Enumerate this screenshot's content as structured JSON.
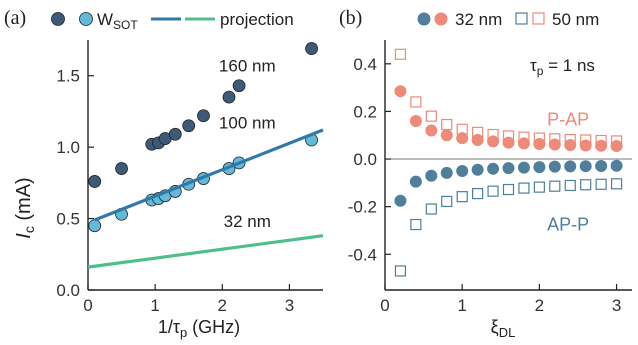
{
  "colors": {
    "dark_navy": "#3f5a78",
    "light_blue": "#62b9d8",
    "projection_teal": "#2f7aa8",
    "projection_green": "#4dbf8c",
    "salmon": "#ef8a78",
    "steel_blue": "#4f7f9b",
    "zero_line": "#777777"
  },
  "chart_data": [
    {
      "panel_label": "(a)",
      "type": "scatter",
      "xlabel_main": "1/τ",
      "xlabel_sub": "p",
      "xlabel_unit": " (GHz)",
      "ylabel_main": "I",
      "ylabel_sub": "c",
      "ylabel_unit": " (mA)",
      "xlim": [
        0,
        3.5
      ],
      "ylim": [
        0,
        1.75
      ],
      "xticks": [
        "0",
        "1",
        "2",
        "3"
      ],
      "xtick_values": [
        0,
        1,
        2,
        3
      ],
      "yticks": [
        "0.0",
        "0.5",
        "1.0",
        "1.5"
      ],
      "ytick_values": [
        0,
        0.5,
        1.0,
        1.5
      ],
      "legend": {
        "placement": "top",
        "entry_dots": "",
        "entry_wsot_main": "W",
        "entry_wsot_sub": "SOT",
        "entry_projection": "projection"
      },
      "annotations": [
        {
          "text": "160 nm",
          "x": 1.95,
          "y": 1.53
        },
        {
          "text": "100 nm",
          "x": 1.95,
          "y": 1.13
        },
        {
          "text": "32 nm",
          "x": 2.02,
          "y": 0.44
        }
      ],
      "series": [
        {
          "kind": "dots_160nm",
          "points": [
            [
              0.1,
              0.76
            ],
            [
              0.5,
              0.85
            ],
            [
              0.95,
              1.02
            ],
            [
              1.05,
              1.03
            ],
            [
              1.15,
              1.06
            ],
            [
              1.3,
              1.09
            ],
            [
              1.5,
              1.15
            ],
            [
              1.72,
              1.22
            ],
            [
              2.1,
              1.35
            ],
            [
              2.25,
              1.43
            ],
            [
              3.33,
              1.69
            ]
          ]
        },
        {
          "kind": "dots_100nm",
          "points": [
            [
              0.1,
              0.45
            ],
            [
              0.5,
              0.53
            ],
            [
              0.95,
              0.63
            ],
            [
              1.05,
              0.64
            ],
            [
              1.15,
              0.66
            ],
            [
              1.3,
              0.69
            ],
            [
              1.5,
              0.74
            ],
            [
              1.72,
              0.78
            ],
            [
              2.1,
              0.85
            ],
            [
              2.25,
              0.89
            ],
            [
              3.33,
              1.05
            ]
          ]
        },
        {
          "kind": "projection_100nm",
          "line": [
            [
              0.1,
              0.49
            ],
            [
              3.5,
              1.12
            ]
          ]
        },
        {
          "kind": "projection_32nm",
          "line": [
            [
              0,
              0.16
            ],
            [
              3.5,
              0.38
            ]
          ]
        }
      ]
    },
    {
      "panel_label": "(b)",
      "type": "scatter",
      "xlabel_main": "ξ",
      "xlabel_sub": "DL",
      "xlim": [
        0,
        3.2
      ],
      "ylim": [
        -0.55,
        0.5
      ],
      "xticks": [
        "0",
        "1",
        "2",
        "3"
      ],
      "xtick_values": [
        0,
        1,
        2,
        3
      ],
      "yticks": [
        "0.4",
        "0.2",
        "0.0",
        "-0.2",
        "-0.4"
      ],
      "ytick_values": [
        0.4,
        0.2,
        0.0,
        -0.2,
        -0.4
      ],
      "legend": {
        "placement": "top",
        "entry_32": "32 nm",
        "entry_50": "50 nm"
      },
      "inset_label_main": "τ",
      "inset_label_sub": "p",
      "inset_label_value": " =  1 ns",
      "annotations": [
        {
          "text": "P-AP",
          "x": 2.1,
          "y": 0.14,
          "color_key": "salmon"
        },
        {
          "text": "AP-P",
          "x": 2.1,
          "y": -0.3,
          "color_key": "steel_blue"
        }
      ],
      "series": [
        {
          "kind": "32nm_P-AP",
          "points": [
            [
              0.2,
              0.285
            ],
            [
              0.4,
              0.16
            ],
            [
              0.6,
              0.12
            ],
            [
              0.8,
              0.1
            ],
            [
              1.0,
              0.088
            ],
            [
              1.2,
              0.08
            ],
            [
              1.4,
              0.074
            ],
            [
              1.6,
              0.069
            ],
            [
              1.8,
              0.066
            ],
            [
              2.0,
              0.063
            ],
            [
              2.2,
              0.061
            ],
            [
              2.4,
              0.059
            ],
            [
              2.6,
              0.057
            ],
            [
              2.8,
              0.056
            ],
            [
              3.0,
              0.055
            ]
          ]
        },
        {
          "kind": "50nm_P-AP",
          "points": [
            [
              0.2,
              0.44
            ],
            [
              0.4,
              0.24
            ],
            [
              0.6,
              0.18
            ],
            [
              0.8,
              0.145
            ],
            [
              1.0,
              0.125
            ],
            [
              1.2,
              0.112
            ],
            [
              1.4,
              0.103
            ],
            [
              1.6,
              0.097
            ],
            [
              1.8,
              0.092
            ],
            [
              2.0,
              0.088
            ],
            [
              2.2,
              0.085
            ],
            [
              2.4,
              0.082
            ],
            [
              2.6,
              0.08
            ],
            [
              2.8,
              0.078
            ],
            [
              3.0,
              0.076
            ]
          ]
        },
        {
          "kind": "32nm_AP-P",
          "points": [
            [
              0.2,
              -0.175
            ],
            [
              0.4,
              -0.095
            ],
            [
              0.6,
              -0.07
            ],
            [
              0.8,
              -0.058
            ],
            [
              1.0,
              -0.05
            ],
            [
              1.2,
              -0.045
            ],
            [
              1.4,
              -0.041
            ],
            [
              1.6,
              -0.038
            ],
            [
              1.8,
              -0.036
            ],
            [
              2.0,
              -0.034
            ],
            [
              2.2,
              -0.032
            ],
            [
              2.4,
              -0.031
            ],
            [
              2.6,
              -0.03
            ],
            [
              2.8,
              -0.029
            ],
            [
              3.0,
              -0.028
            ]
          ]
        },
        {
          "kind": "50nm_AP-P",
          "points": [
            [
              0.2,
              -0.47
            ],
            [
              0.4,
              -0.275
            ],
            [
              0.6,
              -0.21
            ],
            [
              0.8,
              -0.178
            ],
            [
              1.0,
              -0.158
            ],
            [
              1.2,
              -0.145
            ],
            [
              1.4,
              -0.135
            ],
            [
              1.6,
              -0.128
            ],
            [
              1.8,
              -0.122
            ],
            [
              2.0,
              -0.118
            ],
            [
              2.2,
              -0.114
            ],
            [
              2.4,
              -0.111
            ],
            [
              2.6,
              -0.108
            ],
            [
              2.8,
              -0.106
            ],
            [
              3.0,
              -0.104
            ]
          ]
        }
      ]
    }
  ]
}
